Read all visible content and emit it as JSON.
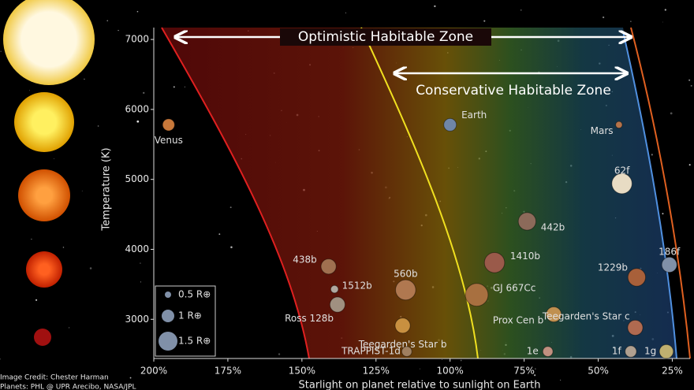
{
  "chart_data": {
    "type": "scatter",
    "x_label": "Starlight on planet relative to sunlight on Earth",
    "y_label": "Temperature (K)",
    "annotations": [
      "Optimistic Habitable Zone",
      "Conservative Habitable Zone"
    ],
    "credit": [
      "Image Credit: Chester Harman",
      "Planets: PHL @ UPR Arecibo, NASA/JPL"
    ],
    "xlim": [
      200,
      19
    ],
    "ylim": [
      2440,
      7170
    ],
    "xticks": [
      {
        "value": 200,
        "label": "200%"
      },
      {
        "value": 175,
        "label": "175%"
      },
      {
        "value": 150,
        "label": "150%"
      },
      {
        "value": 125,
        "label": "125%"
      },
      {
        "value": 100,
        "label": "100%"
      },
      {
        "value": 75,
        "label": "75%"
      },
      {
        "value": 50,
        "label": "50%"
      },
      {
        "value": 25,
        "label": "25%"
      }
    ],
    "yticks": [
      3000,
      4000,
      5000,
      6000,
      7000
    ],
    "size_legend": [
      {
        "value": 0.5,
        "label": "0.5 R⊕"
      },
      {
        "value": 1,
        "label": "1 R⊕"
      },
      {
        "value": 1.5,
        "label": "1.5 R⊕"
      }
    ],
    "points": [
      {
        "name": "Venus",
        "x": 195,
        "y": 5780,
        "size": 0.95,
        "color": "#c8783a"
      },
      {
        "name": "Earth",
        "x": 100,
        "y": 5780,
        "size": 1,
        "color": "#6f86a8"
      },
      {
        "name": "Mars",
        "x": 43,
        "y": 5780,
        "size": 0.53,
        "color": "#b5734a"
      },
      {
        "name": "62f",
        "x": 42,
        "y": 4940,
        "size": 1.6,
        "color": "#e8dcc4"
      },
      {
        "name": "442b",
        "x": 74,
        "y": 4400,
        "size": 1.4,
        "color": "#8c6a5a"
      },
      {
        "name": "186f",
        "x": 26,
        "y": 3780,
        "size": 1.2,
        "color": "#8090a8"
      },
      {
        "name": "1229b",
        "x": 37,
        "y": 3600,
        "size": 1.4,
        "color": "#a8603a"
      },
      {
        "name": "438b",
        "x": 141,
        "y": 3755,
        "size": 1.2,
        "color": "#a07050"
      },
      {
        "name": "1410b",
        "x": 85,
        "y": 3810,
        "size": 1.6,
        "color": "#9a5a4a"
      },
      {
        "name": "1512b",
        "x": 139,
        "y": 3430,
        "size": 0.6,
        "color": "#b0a8a0"
      },
      {
        "name": "560b",
        "x": 115,
        "y": 3420,
        "size": 1.6,
        "color": "#b07850"
      },
      {
        "name": "GJ 667Cc",
        "x": 91,
        "y": 3350,
        "size": 1.8,
        "color": "#a87040"
      },
      {
        "name": "Ross 128b",
        "x": 138,
        "y": 3210,
        "size": 1.2,
        "color": "#a09080"
      },
      {
        "name": "Teegarden's Star b",
        "x": 116,
        "y": 2910,
        "size": 1.2,
        "color": "#c89040"
      },
      {
        "name": "Prox Cen b",
        "x": 65,
        "y": 3070,
        "size": 1.2,
        "color": "#c09050"
      },
      {
        "name": "Teegarden's Star c",
        "x": 37.5,
        "y": 2880,
        "size": 1.2,
        "color": "#b06a50"
      },
      {
        "name": "TRAPPIST-1d",
        "x": 114.6,
        "y": 2540,
        "size": 0.8,
        "color": "#a08060"
      },
      {
        "name": "1e",
        "x": 67,
        "y": 2540,
        "size": 0.8,
        "color": "#c09080"
      },
      {
        "name": "1f",
        "x": 39,
        "y": 2540,
        "size": 0.9,
        "color": "#b0a090"
      },
      {
        "name": "1g",
        "x": 27,
        "y": 2540,
        "size": 1.1,
        "color": "#c0b070"
      }
    ]
  }
}
